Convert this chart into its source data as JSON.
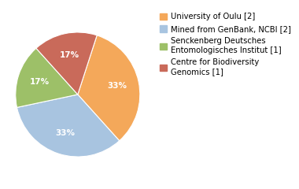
{
  "labels": [
    "University of Oulu [2]",
    "Mined from GenBank, NCBI [2]",
    "Senckenberg Deutsches\nEntomologisches Institut [1]",
    "Centre for Biodiversity\nGenomics [1]"
  ],
  "values": [
    2,
    2,
    1,
    1
  ],
  "colors": [
    "#F4A85A",
    "#A8C4E0",
    "#9DC068",
    "#C96A5A"
  ],
  "startangle": 72,
  "background_color": "#ffffff",
  "text_color": "#ffffff",
  "fontsize": 7.5,
  "legend_fontsize": 7.2
}
